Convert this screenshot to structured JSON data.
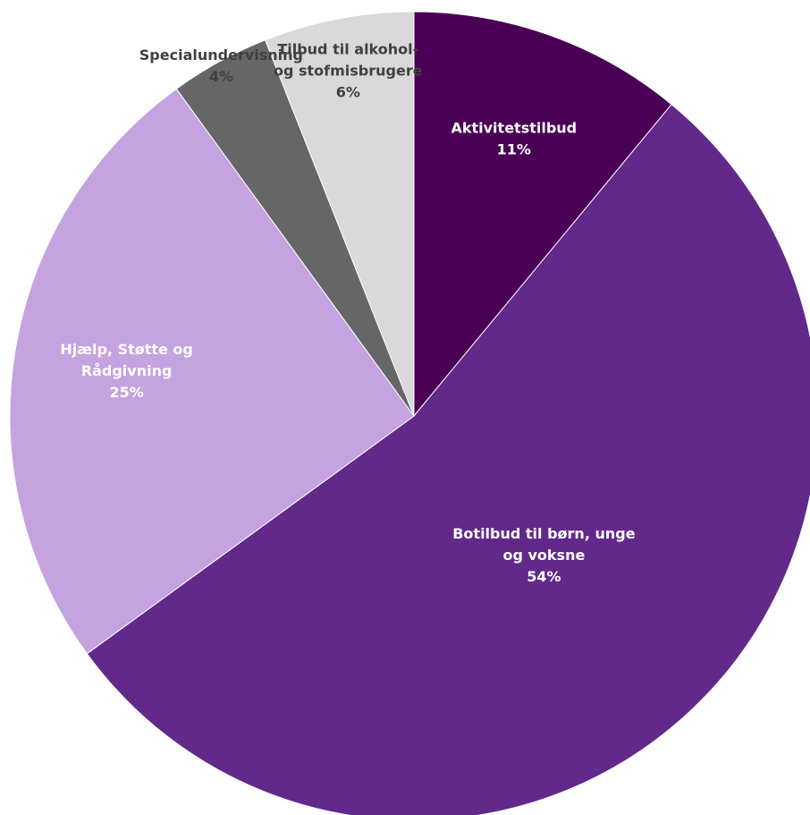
{
  "chart_data": {
    "type": "pie",
    "title": "",
    "start_angle_deg": 0,
    "direction": "clockwise",
    "legend": "none",
    "slices": [
      {
        "label_lines": [
          "Aktivitetstilbud"
        ],
        "value": 11,
        "value_label": "11%",
        "color": "#4a0055",
        "label_color": "#ffffff"
      },
      {
        "label_lines": [
          "Botilbud til børn, unge",
          "og voksne"
        ],
        "value": 54,
        "value_label": "54%",
        "color": "#62288a",
        "label_color": "#ffffff"
      },
      {
        "label_lines": [
          "Hjælp, Støtte og",
          "Rådgivning"
        ],
        "value": 25,
        "value_label": "25%",
        "color": "#c4a3e0",
        "label_color": "#ffffff"
      },
      {
        "label_lines": [
          "Specialundervisning"
        ],
        "value": 4,
        "value_label": "4%",
        "color": "#666666",
        "label_color": "#404040"
      },
      {
        "label_lines": [
          "Tilbud til alkohol-",
          "og stofmisbrugere"
        ],
        "value": 6,
        "value_label": "6%",
        "color": "#d9d9d9",
        "label_color": "#404040"
      }
    ]
  }
}
